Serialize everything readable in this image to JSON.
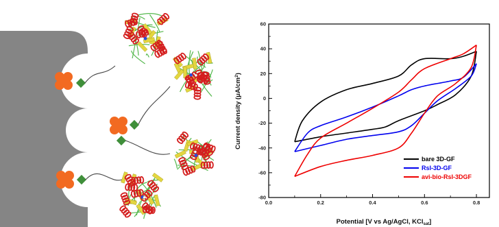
{
  "chart_data": {
    "type": "line",
    "xlabel": "Potential [V vs Ag/AgCl, KCl",
    "xlabel_sub": "sat",
    "xlabel_close": "]",
    "ylabel": "Current density (μA/cm",
    "ylabel_sup": "2",
    "ylabel_close": ")",
    "xlim": [
      0.0,
      0.85
    ],
    "ylim": [
      -80,
      60
    ],
    "x_ticks": [
      0.0,
      0.2,
      0.4,
      0.6,
      0.8
    ],
    "x_tick_labels": [
      "0.0",
      "0.2",
      "0.4",
      "0.6",
      "0.8"
    ],
    "y_ticks": [
      -80,
      -60,
      -40,
      -20,
      0,
      20,
      40,
      60
    ],
    "y_tick_labels": [
      "-80",
      "-60",
      "-40",
      "-20",
      "0",
      "20",
      "40",
      "60"
    ],
    "legend_position": "bottom-right",
    "series": [
      {
        "name": "bare 3D-GF",
        "color": "#000000",
        "forward": [
          [
            0.1,
            -35
          ],
          [
            0.13,
            -18
          ],
          [
            0.2,
            -3
          ],
          [
            0.3,
            7
          ],
          [
            0.4,
            12
          ],
          [
            0.5,
            18
          ],
          [
            0.55,
            27
          ],
          [
            0.6,
            32
          ],
          [
            0.7,
            32
          ],
          [
            0.75,
            34
          ],
          [
            0.8,
            38
          ]
        ],
        "reverse": [
          [
            0.8,
            38
          ],
          [
            0.78,
            18
          ],
          [
            0.72,
            3
          ],
          [
            0.65,
            -5
          ],
          [
            0.6,
            -10
          ],
          [
            0.5,
            -18
          ],
          [
            0.45,
            -23
          ],
          [
            0.4,
            -25
          ],
          [
            0.3,
            -28
          ],
          [
            0.2,
            -31
          ],
          [
            0.1,
            -35
          ]
        ]
      },
      {
        "name": "RsI-3D-GF",
        "color": "#0000ee",
        "forward": [
          [
            0.1,
            -43
          ],
          [
            0.15,
            -28
          ],
          [
            0.2,
            -22
          ],
          [
            0.3,
            -15
          ],
          [
            0.4,
            -7
          ],
          [
            0.5,
            2
          ],
          [
            0.55,
            7
          ],
          [
            0.6,
            10
          ],
          [
            0.7,
            14
          ],
          [
            0.75,
            17
          ],
          [
            0.8,
            28
          ]
        ],
        "reverse": [
          [
            0.8,
            28
          ],
          [
            0.78,
            18
          ],
          [
            0.72,
            8
          ],
          [
            0.65,
            -2
          ],
          [
            0.6,
            -12
          ],
          [
            0.55,
            -22
          ],
          [
            0.5,
            -27
          ],
          [
            0.4,
            -30
          ],
          [
            0.3,
            -33
          ],
          [
            0.2,
            -38
          ],
          [
            0.1,
            -43
          ]
        ]
      },
      {
        "name": "avi-bio-RsI-3DGF",
        "color": "#ee0000",
        "forward": [
          [
            0.1,
            -63
          ],
          [
            0.15,
            -45
          ],
          [
            0.2,
            -32
          ],
          [
            0.3,
            -20
          ],
          [
            0.4,
            -8
          ],
          [
            0.5,
            5
          ],
          [
            0.55,
            15
          ],
          [
            0.6,
            24
          ],
          [
            0.7,
            32
          ],
          [
            0.75,
            36
          ],
          [
            0.8,
            43
          ]
        ],
        "reverse": [
          [
            0.8,
            43
          ],
          [
            0.78,
            25
          ],
          [
            0.72,
            12
          ],
          [
            0.65,
            2
          ],
          [
            0.6,
            -12
          ],
          [
            0.55,
            -28
          ],
          [
            0.5,
            -40
          ],
          [
            0.4,
            -46
          ],
          [
            0.3,
            -50
          ],
          [
            0.2,
            -55
          ],
          [
            0.1,
            -63
          ]
        ]
      }
    ]
  },
  "illustration": {
    "surface_color": "#858585",
    "linker_color": "#f26a21",
    "biotin_color": "#3f8f3a",
    "helix_color": "#d41f1f",
    "sheet_color": "#e3d640",
    "coil_color": "#55b84d"
  }
}
